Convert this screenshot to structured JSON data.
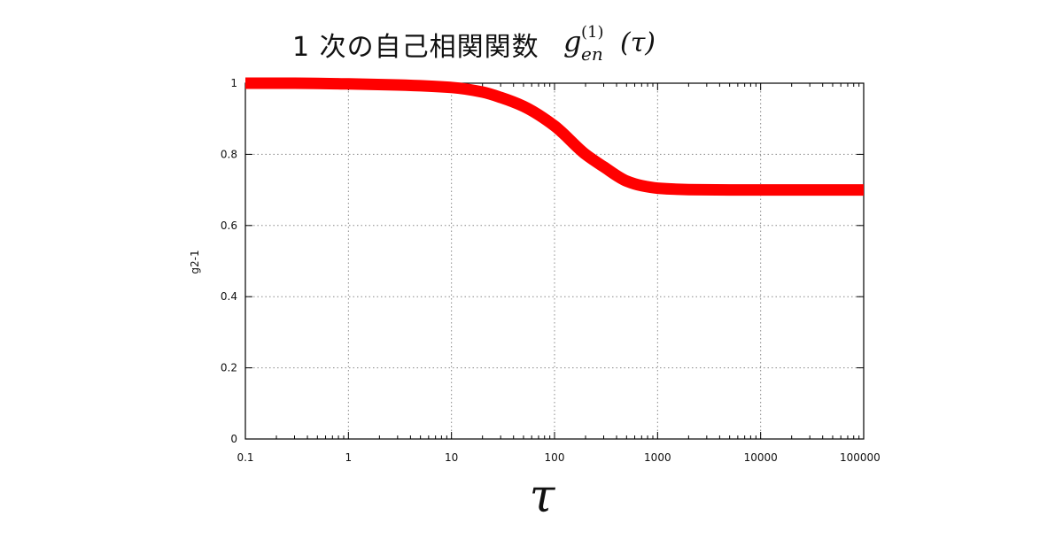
{
  "title": {
    "text_jp": "1 次の自己相関関数",
    "math_symbol": "g",
    "math_subscript": "en",
    "math_superscript": "(1)",
    "math_argument": "(τ)"
  },
  "chart_data": {
    "type": "line",
    "xscale": "log",
    "xlim": [
      0.1,
      100000
    ],
    "ylim": [
      0,
      1
    ],
    "xlabel": "τ",
    "ylabel": "g2-1",
    "x_ticks": [
      0.1,
      1,
      10,
      100,
      1000,
      10000,
      100000
    ],
    "x_tick_labels": [
      "0.1",
      "1",
      "10",
      "100",
      "1000",
      "10000",
      "100000"
    ],
    "y_ticks": [
      0,
      0.2,
      0.4,
      0.6,
      0.8,
      1
    ],
    "y_tick_labels": [
      "0",
      "0.2",
      "0.4",
      "0.6",
      "0.8",
      "1"
    ],
    "grid": true,
    "series": [
      {
        "color": "#ff0000",
        "x": [
          0.1,
          0.3,
          1,
          3,
          10,
          20,
          30,
          50,
          100,
          200,
          300,
          500,
          700,
          1000,
          2000,
          5000,
          10000,
          100000
        ],
        "y": [
          1.0,
          1.0,
          0.998,
          0.995,
          0.988,
          0.975,
          0.96,
          0.935,
          0.88,
          0.8,
          0.765,
          0.725,
          0.712,
          0.705,
          0.701,
          0.7,
          0.7,
          0.7
        ]
      }
    ]
  }
}
